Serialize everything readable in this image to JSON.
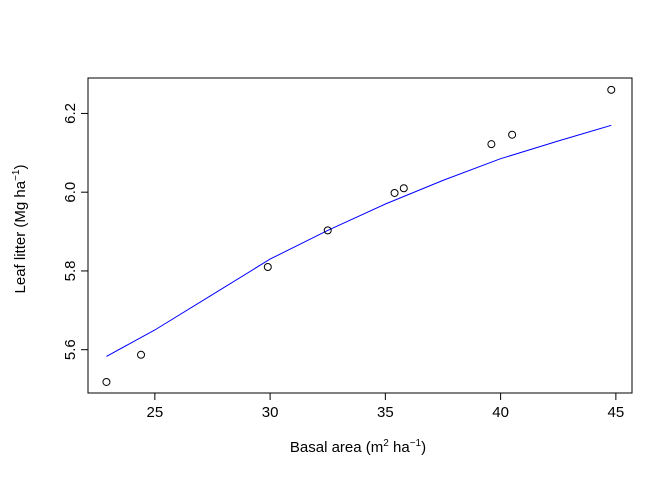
{
  "chart_data": {
    "type": "scatter",
    "title": "",
    "xlabel": {
      "main": "Basal area (m",
      "sup1": "2",
      "mid": " ha",
      "sup2": "−1",
      "end": ")"
    },
    "ylabel": {
      "main": "Leaf litter (Mg ha",
      "sup": "−1",
      "end": ")"
    },
    "xlim": [
      22.1,
      45.7
    ],
    "ylim": [
      5.49,
      6.29
    ],
    "xticks": [
      25,
      30,
      35,
      40,
      45
    ],
    "yticks": [
      5.6,
      5.8,
      6.0,
      6.2
    ],
    "xtick_labels": [
      "25",
      "30",
      "35",
      "40",
      "45"
    ],
    "ytick_labels": [
      "5.6",
      "5.8",
      "6.0",
      "6.2"
    ],
    "points": [
      {
        "x": 22.9,
        "y": 5.518
      },
      {
        "x": 24.4,
        "y": 5.587
      },
      {
        "x": 29.9,
        "y": 5.81
      },
      {
        "x": 32.5,
        "y": 5.903
      },
      {
        "x": 35.4,
        "y": 5.998
      },
      {
        "x": 35.8,
        "y": 6.01
      },
      {
        "x": 39.6,
        "y": 6.122
      },
      {
        "x": 40.5,
        "y": 6.146
      },
      {
        "x": 44.8,
        "y": 6.26
      }
    ],
    "fit_line": {
      "color": "#0000ff",
      "x": [
        22.9,
        25,
        27.5,
        30,
        32.5,
        35,
        37.5,
        40,
        42.5,
        44.8
      ],
      "y": [
        5.583,
        5.65,
        5.74,
        5.83,
        5.903,
        5.97,
        6.03,
        6.085,
        6.13,
        6.17
      ]
    },
    "grid": false,
    "legend": "none",
    "point_color": "#000000"
  }
}
